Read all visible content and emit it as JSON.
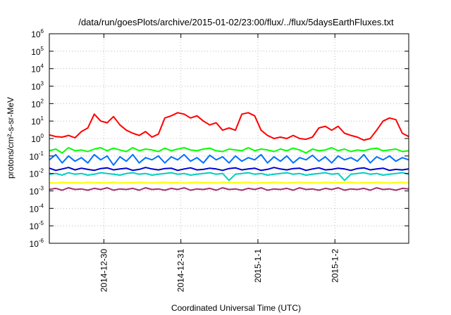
{
  "chart_data": {
    "type": "line",
    "title": "/data/run/goesPlots/archive/2015-01-02/23:00/flux/../flux/5daysEarthFluxes.txt",
    "xlabel": "Coordinated Universal Time (UTC)",
    "ylabel": "protons/cm²-s-sr-MeV",
    "yscale": "log",
    "xlim": [
      "2014-12-29 07:00",
      "2015-01-02 23:00"
    ],
    "ylim": [
      1e-06,
      1000000.0
    ],
    "x_ticks": [
      {
        "t": "2014-12-30",
        "label": "2014-12-30"
      },
      {
        "t": "2014-12-31",
        "label": "2014-12-31"
      },
      {
        "t": "2015-01-01",
        "label": "2015-1-1"
      },
      {
        "t": "2015-01-02",
        "label": "2015-1-2"
      }
    ],
    "y_ticks": [
      {
        "value": 1e-06,
        "exp": "-6"
      },
      {
        "value": 1e-05,
        "exp": "-5"
      },
      {
        "value": 0.0001,
        "exp": "-4"
      },
      {
        "value": 0.001,
        "exp": "-3"
      },
      {
        "value": 0.01,
        "exp": "-2"
      },
      {
        "value": 0.1,
        "exp": "-1"
      },
      {
        "value": 1,
        "exp": "0"
      },
      {
        "value": 10,
        "exp": "1"
      },
      {
        "value": 100,
        "exp": "2"
      },
      {
        "value": 1000,
        "exp": "3"
      },
      {
        "value": 10000,
        "exp": "4"
      },
      {
        "value": 100000,
        "exp": "5"
      },
      {
        "value": 1000000,
        "exp": "6"
      }
    ],
    "grid": true,
    "legend": "none",
    "x_times": [
      "2014-12-29 07:00",
      "2014-12-29 09:00",
      "2014-12-29 11:00",
      "2014-12-29 13:00",
      "2014-12-29 15:00",
      "2014-12-29 17:00",
      "2014-12-29 19:00",
      "2014-12-29 21:00",
      "2014-12-29 23:00",
      "2014-12-30 01:00",
      "2014-12-30 03:00",
      "2014-12-30 05:00",
      "2014-12-30 07:00",
      "2014-12-30 09:00",
      "2014-12-30 11:00",
      "2014-12-30 13:00",
      "2014-12-30 15:00",
      "2014-12-30 17:00",
      "2014-12-30 19:00",
      "2014-12-30 21:00",
      "2014-12-30 23:00",
      "2014-12-31 01:00",
      "2014-12-31 03:00",
      "2014-12-31 05:00",
      "2014-12-31 07:00",
      "2014-12-31 09:00",
      "2014-12-31 11:00",
      "2014-12-31 13:00",
      "2014-12-31 15:00",
      "2014-12-31 17:00",
      "2014-12-31 19:00",
      "2014-12-31 21:00",
      "2014-12-31 23:00",
      "2015-01-01 01:00",
      "2015-01-01 03:00",
      "2015-01-01 05:00",
      "2015-01-01 07:00",
      "2015-01-01 09:00",
      "2015-01-01 11:00",
      "2015-01-01 13:00",
      "2015-01-01 15:00",
      "2015-01-01 17:00",
      "2015-01-01 19:00",
      "2015-01-01 21:00",
      "2015-01-01 23:00",
      "2015-01-02 01:00",
      "2015-01-02 03:00",
      "2015-01-02 05:00",
      "2015-01-02 07:00",
      "2015-01-02 09:00",
      "2015-01-02 11:00",
      "2015-01-02 13:00",
      "2015-01-02 15:00",
      "2015-01-02 17:00",
      "2015-01-02 19:00",
      "2015-01-02 21:00",
      "2015-01-02 23:00"
    ],
    "series": [
      {
        "color": "#ff0000",
        "values": [
          1.6,
          1.3,
          1.2,
          1.5,
          1.1,
          2.5,
          4,
          25,
          10,
          8,
          18,
          6,
          3,
          2,
          1.5,
          2.5,
          1.2,
          1.8,
          15,
          20,
          30,
          25,
          15,
          20,
          10,
          6,
          8,
          3,
          4,
          3,
          25,
          30,
          20,
          3,
          1.5,
          1,
          1.2,
          1,
          1.5,
          1,
          0.9,
          1.2,
          4,
          5,
          3,
          5,
          2,
          1.5,
          1.2,
          0.8,
          1,
          3,
          10,
          15,
          12,
          2,
          1.3
        ]
      },
      {
        "color": "#00ff00",
        "values": [
          0.2,
          0.25,
          0.15,
          0.3,
          0.2,
          0.22,
          0.18,
          0.25,
          0.3,
          0.2,
          0.28,
          0.22,
          0.18,
          0.3,
          0.2,
          0.25,
          0.22,
          0.18,
          0.28,
          0.2,
          0.25,
          0.3,
          0.22,
          0.2,
          0.25,
          0.28,
          0.2,
          0.18,
          0.25,
          0.22,
          0.2,
          0.3,
          0.2,
          0.25,
          0.22,
          0.18,
          0.25,
          0.2,
          0.28,
          0.22,
          0.15,
          0.25,
          0.2,
          0.22,
          0.3,
          0.2,
          0.25,
          0.18,
          0.22,
          0.2,
          0.25,
          0.28,
          0.2,
          0.22,
          0.25,
          0.18,
          0.2
        ]
      },
      {
        "color": "#0070ff",
        "values": [
          0.06,
          0.12,
          0.04,
          0.1,
          0.05,
          0.08,
          0.04,
          0.12,
          0.06,
          0.1,
          0.03,
          0.09,
          0.05,
          0.12,
          0.04,
          0.08,
          0.06,
          0.1,
          0.04,
          0.09,
          0.06,
          0.12,
          0.05,
          0.08,
          0.04,
          0.11,
          0.06,
          0.09,
          0.04,
          0.1,
          0.05,
          0.08,
          0.06,
          0.12,
          0.04,
          0.09,
          0.05,
          0.1,
          0.04,
          0.08,
          0.06,
          0.11,
          0.05,
          0.09,
          0.04,
          0.1,
          0.06,
          0.08,
          0.05,
          0.12,
          0.04,
          0.09,
          0.06,
          0.1,
          0.05,
          0.08,
          0.06
        ]
      },
      {
        "color": "#00d0c0",
        "values": [
          0.009,
          0.01,
          0.008,
          0.011,
          0.009,
          0.01,
          0.008,
          0.009,
          0.011,
          0.01,
          0.009,
          0.008,
          0.01,
          0.011,
          0.009,
          0.01,
          0.008,
          0.009,
          0.01,
          0.011,
          0.009,
          0.01,
          0.008,
          0.009,
          0.01,
          0.011,
          0.009,
          0.01,
          0.004,
          0.009,
          0.01,
          0.011,
          0.009,
          0.01,
          0.008,
          0.009,
          0.01,
          0.011,
          0.009,
          0.01,
          0.008,
          0.009,
          0.01,
          0.011,
          0.009,
          0.01,
          0.004,
          0.009,
          0.01,
          0.011,
          0.009,
          0.01,
          0.008,
          0.009,
          0.01,
          0.011,
          0.009
        ]
      },
      {
        "color": "#0000d0",
        "values": [
          0.02,
          0.015,
          0.018,
          0.022,
          0.016,
          0.02,
          0.017,
          0.015,
          0.019,
          0.021,
          0.016,
          0.018,
          0.02,
          0.015,
          0.017,
          0.022,
          0.018,
          0.016,
          0.019,
          0.02,
          0.015,
          0.018,
          0.021,
          0.016,
          0.017,
          0.02,
          0.018,
          0.015,
          0.019,
          0.021,
          0.016,
          0.018,
          0.02,
          0.015,
          0.017,
          0.022,
          0.018,
          0.016,
          0.019,
          0.02,
          0.015,
          0.018,
          0.021,
          0.016,
          0.017,
          0.02,
          0.018,
          0.015,
          0.019,
          0.021,
          0.016,
          0.018,
          0.02,
          0.015,
          0.017,
          0.016,
          0.018
        ]
      },
      {
        "color": "#ffff00",
        "values": [
          0.003,
          0.0028,
          0.0031,
          0.0029,
          0.003,
          0.0028,
          0.0031,
          0.003,
          0.0029,
          0.003,
          0.0031,
          0.0028,
          0.003,
          0.0029,
          0.0031,
          0.003,
          0.0028,
          0.003,
          0.0031,
          0.0029,
          0.003,
          0.0028,
          0.003,
          0.0031,
          0.0029,
          0.003,
          0.0028,
          0.0031,
          0.003,
          0.0029,
          0.003,
          0.0031,
          0.0028,
          0.003,
          0.0029,
          0.0031,
          0.003,
          0.0028,
          0.003,
          0.0031,
          0.0029,
          0.003,
          0.0028,
          0.0031,
          0.003,
          0.0029,
          0.003,
          0.0031,
          0.0028,
          0.003,
          0.0029,
          0.0031,
          0.003,
          0.0028,
          0.003,
          0.0031,
          0.0029
        ]
      },
      {
        "color": "#a0306a",
        "values": [
          0.0012,
          0.0014,
          0.0011,
          0.0015,
          0.0012,
          0.0013,
          0.0011,
          0.0014,
          0.0012,
          0.0015,
          0.0011,
          0.0013,
          0.0012,
          0.0014,
          0.0011,
          0.0015,
          0.0012,
          0.0013,
          0.0011,
          0.0014,
          0.0012,
          0.0015,
          0.0011,
          0.0013,
          0.0012,
          0.0014,
          0.0011,
          0.0015,
          0.0012,
          0.0013,
          0.0011,
          0.0014,
          0.0012,
          0.0015,
          0.0011,
          0.0013,
          0.0012,
          0.0014,
          0.0011,
          0.0015,
          0.0012,
          0.0013,
          0.0011,
          0.0014,
          0.0012,
          0.0015,
          0.0011,
          0.0013,
          0.0012,
          0.0014,
          0.0011,
          0.0015,
          0.0012,
          0.0013,
          0.0011,
          0.0014,
          0.0013
        ]
      }
    ]
  }
}
